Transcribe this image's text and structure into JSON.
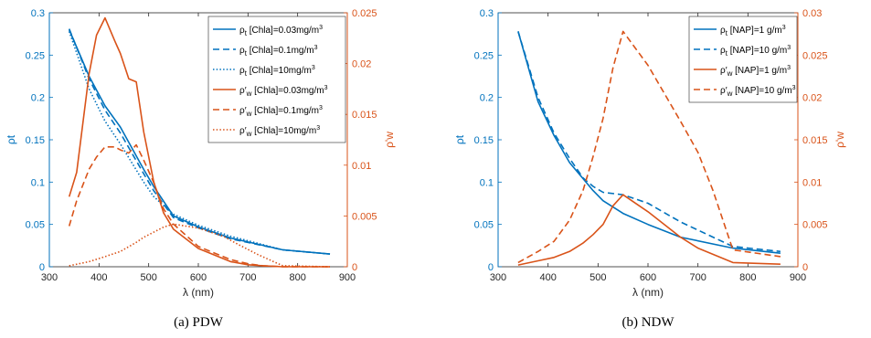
{
  "colors": {
    "left_axis": "#0072BD",
    "right_axis": "#D95319",
    "axis_black": "#262626"
  },
  "chart_data": [
    {
      "type": "line",
      "caption": "(a) PDW",
      "xlabel": "λ (nm)",
      "ylabel_left": "ρt",
      "ylabel_right": "ρ'w",
      "xlim": [
        300,
        900
      ],
      "ylim_left": [
        0,
        0.3
      ],
      "ylim_right": [
        0,
        0.025
      ],
      "xticks": [
        "300",
        "400",
        "500",
        "600",
        "700",
        "800",
        "900"
      ],
      "yticks_left": [
        "0",
        "0.05",
        "0.1",
        "0.15",
        "0.2",
        "0.25",
        "0.3"
      ],
      "yticks_right": [
        "0",
        "0.005",
        "0.01",
        "0.015",
        "0.02",
        "0.025"
      ],
      "legend_position": "top-right",
      "series": [
        {
          "name": "ρt [Chla]=0.03mg/m3",
          "axis": "left",
          "style": "solid",
          "x": [
            340,
            380,
            412,
            443,
            490,
            510,
            550,
            600,
            665,
            770,
            865
          ],
          "y": [
            0.28,
            0.225,
            0.19,
            0.165,
            0.115,
            0.095,
            0.06,
            0.047,
            0.034,
            0.02,
            0.015
          ]
        },
        {
          "name": "ρt [Chla]=0.1mg/m3",
          "axis": "left",
          "style": "dashed",
          "x": [
            340,
            380,
            412,
            443,
            490,
            510,
            550,
            600,
            665,
            770,
            865
          ],
          "y": [
            0.281,
            0.222,
            0.185,
            0.158,
            0.11,
            0.09,
            0.058,
            0.046,
            0.033,
            0.02,
            0.015
          ]
        },
        {
          "name": "ρt [Chla]=10mg/m3",
          "axis": "left",
          "style": "dotted",
          "x": [
            340,
            380,
            412,
            443,
            490,
            510,
            550,
            600,
            665,
            770,
            865
          ],
          "y": [
            0.278,
            0.21,
            0.172,
            0.145,
            0.1,
            0.083,
            0.062,
            0.049,
            0.036,
            0.02,
            0.015
          ]
        },
        {
          "name": "ρ'w [Chla]=0.03mg/m3",
          "axis": "right",
          "style": "solid",
          "x": [
            340,
            355,
            380,
            395,
            412,
            432,
            443,
            460,
            475,
            490,
            510,
            530,
            550,
            600,
            665,
            700,
            730,
            770,
            865
          ],
          "y": [
            0.0069,
            0.0093,
            0.019,
            0.0228,
            0.0245,
            0.0222,
            0.021,
            0.0185,
            0.0182,
            0.0133,
            0.0084,
            0.0053,
            0.0037,
            0.0018,
            0.0005,
            0.0002,
            0.0001,
            0.0,
            0.0
          ]
        },
        {
          "name": "ρ'w [Chla]=0.1mg/m3",
          "axis": "right",
          "style": "dashed",
          "x": [
            340,
            355,
            380,
            395,
            412,
            432,
            443,
            460,
            475,
            490,
            510,
            530,
            550,
            600,
            665,
            700,
            730,
            770,
            865
          ],
          "y": [
            0.004,
            0.0065,
            0.0096,
            0.0108,
            0.0118,
            0.0118,
            0.0115,
            0.0112,
            0.012,
            0.0105,
            0.0083,
            0.0057,
            0.0042,
            0.002,
            0.0007,
            0.0003,
            0.0001,
            0.0,
            0.0
          ]
        },
        {
          "name": "ρ'w [Chla]=10mg/m3",
          "axis": "right",
          "style": "dotted",
          "x": [
            340,
            380,
            412,
            443,
            475,
            490,
            510,
            530,
            550,
            600,
            650,
            680,
            720,
            770,
            865
          ],
          "y": [
            0.0001,
            0.0005,
            0.001,
            0.0015,
            0.0024,
            0.0029,
            0.0034,
            0.0039,
            0.0042,
            0.0038,
            0.003,
            0.0022,
            0.0012,
            0.0001,
            0.0
          ]
        }
      ],
      "legend": [
        {
          "sym": "ρ",
          "sub": "t",
          "label": "[Chla]=0.03mg/m",
          "sup": "3",
          "style": "solid",
          "axis": "left"
        },
        {
          "sym": "ρ",
          "sub": "t",
          "label": "[Chla]=0.1mg/m",
          "sup": "3",
          "style": "dashed",
          "axis": "left"
        },
        {
          "sym": "ρ",
          "sub": "t",
          "label": "[Chla]=10mg/m",
          "sup": "3",
          "style": "dotted",
          "axis": "left"
        },
        {
          "sym": "ρ′",
          "sub": "w",
          "label": "[Chla]=0.03mg/m",
          "sup": "3",
          "style": "solid",
          "axis": "right"
        },
        {
          "sym": "ρ′",
          "sub": "w",
          "label": "[Chla]=0.1mg/m",
          "sup": "3",
          "style": "dashed",
          "axis": "right"
        },
        {
          "sym": "ρ′",
          "sub": "w",
          "label": "[Chla]=10mg/m",
          "sup": "3",
          "style": "dotted",
          "axis": "right"
        }
      ]
    },
    {
      "type": "line",
      "caption": "(b) NDW",
      "xlabel": "λ (nm)",
      "ylabel_left": "ρt",
      "ylabel_right": "ρ'w",
      "xlim": [
        300,
        900
      ],
      "ylim_left": [
        0,
        0.3
      ],
      "ylim_right": [
        0,
        0.03
      ],
      "xticks": [
        "300",
        "400",
        "500",
        "600",
        "700",
        "800",
        "900"
      ],
      "yticks_left": [
        "0",
        "0.05",
        "0.1",
        "0.15",
        "0.2",
        "0.25",
        "0.3"
      ],
      "yticks_right": [
        "0",
        "0.005",
        "0.01",
        "0.015",
        "0.02",
        "0.025",
        "0.03"
      ],
      "legend_position": "top-right",
      "series": [
        {
          "name": "ρt [NAP]=1 g/m3",
          "axis": "left",
          "style": "solid",
          "x": [
            340,
            380,
            412,
            443,
            490,
            510,
            550,
            600,
            665,
            770,
            865
          ],
          "y": [
            0.278,
            0.195,
            0.155,
            0.123,
            0.09,
            0.078,
            0.063,
            0.05,
            0.035,
            0.022,
            0.016
          ]
        },
        {
          "name": "ρt [NAP]=10 g/m3",
          "axis": "left",
          "style": "dashed",
          "x": [
            340,
            380,
            412,
            443,
            470,
            490,
            510,
            550,
            600,
            665,
            770,
            865
          ],
          "y": [
            0.278,
            0.2,
            0.158,
            0.128,
            0.105,
            0.095,
            0.088,
            0.085,
            0.075,
            0.053,
            0.024,
            0.018
          ]
        },
        {
          "name": "ρ'w [NAP]=1 g/m3",
          "axis": "right",
          "style": "solid",
          "x": [
            340,
            380,
            412,
            443,
            470,
            490,
            510,
            530,
            550,
            600,
            665,
            700,
            770,
            865
          ],
          "y": [
            0.0002,
            0.0007,
            0.0011,
            0.0018,
            0.0028,
            0.0038,
            0.005,
            0.0072,
            0.0085,
            0.0065,
            0.0035,
            0.0022,
            0.0005,
            0.0003
          ]
        },
        {
          "name": "ρ'w [NAP]=10 g/m3",
          "axis": "right",
          "style": "dashed",
          "x": [
            340,
            380,
            412,
            443,
            470,
            490,
            510,
            530,
            550,
            600,
            665,
            700,
            730,
            770,
            865
          ],
          "y": [
            0.0005,
            0.0018,
            0.003,
            0.0055,
            0.009,
            0.013,
            0.0175,
            0.0235,
            0.0278,
            0.0238,
            0.0172,
            0.0135,
            0.009,
            0.002,
            0.0012
          ]
        }
      ],
      "legend": [
        {
          "sym": "ρ",
          "sub": "t",
          "label": "[NAP]=1 g/m",
          "sup": "3",
          "style": "solid",
          "axis": "left"
        },
        {
          "sym": "ρ",
          "sub": "t",
          "label": "[NAP]=10 g/m",
          "sup": "3",
          "style": "dashed",
          "axis": "left"
        },
        {
          "sym": "ρ′",
          "sub": "w",
          "label": "[NAP]=1 g/m",
          "sup": "3",
          "style": "solid",
          "axis": "right"
        },
        {
          "sym": "ρ′",
          "sub": "w",
          "label": "[NAP]=10 g/m",
          "sup": "3",
          "style": "dashed",
          "axis": "right"
        }
      ]
    }
  ]
}
